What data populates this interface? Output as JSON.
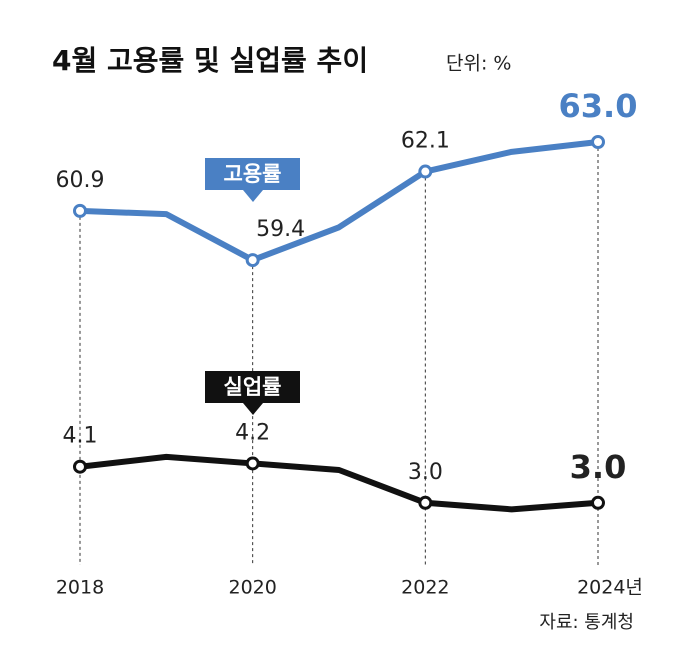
{
  "chart_data": {
    "type": "line",
    "title": "4월 고용률 및 실업률 추이",
    "subtitle": "단위: %",
    "source": "자료: 통계청",
    "categories": [
      "2018",
      null,
      "2020",
      null,
      "2022",
      null,
      "2024년"
    ],
    "series": [
      {
        "name": "고용률",
        "color": "#4a80c4",
        "values": [
          60.9,
          60.8,
          59.4,
          60.4,
          62.1,
          62.7,
          63.0
        ],
        "value_labels": [
          "60.9",
          null,
          "59.4",
          null,
          "62.1",
          null,
          "63.0"
        ]
      },
      {
        "name": "실업률",
        "color": "#111111",
        "axis": "y2",
        "values": [
          4.1,
          4.4,
          4.2,
          4.0,
          3.0,
          2.8,
          3.0
        ],
        "value_labels": [
          "4.1",
          null,
          "4.2",
          null,
          "3.0",
          null,
          "3.0"
        ]
      }
    ],
    "ylim": [
      50,
      64
    ],
    "y2lim": [
      1,
      15
    ]
  }
}
